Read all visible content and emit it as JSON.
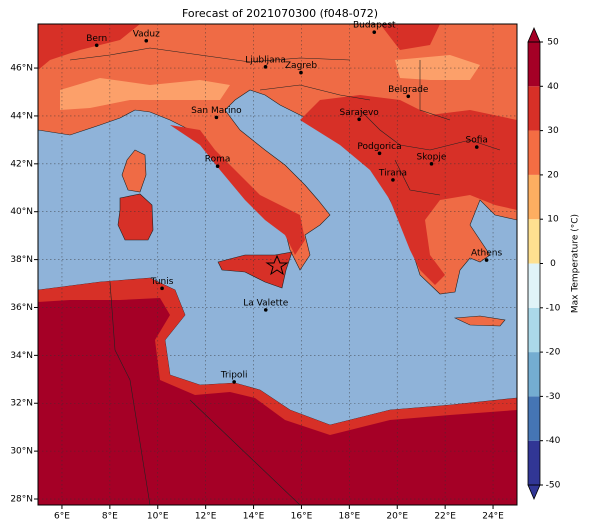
{
  "chart_data": {
    "type": "map",
    "title": "Forecast of 2021070300 (f048-072)",
    "xlim": [
      5,
      25
    ],
    "ylim": [
      27.75,
      47.84
    ],
    "xticks": [
      {
        "value": 6,
        "label": "6°E"
      },
      {
        "value": 8,
        "label": "8°E"
      },
      {
        "value": 10,
        "label": "10°E"
      },
      {
        "value": 12,
        "label": "12°E"
      },
      {
        "value": 14,
        "label": "14°E"
      },
      {
        "value": 16,
        "label": "16°E"
      },
      {
        "value": 18,
        "label": "18°E"
      },
      {
        "value": 20,
        "label": "20°E"
      },
      {
        "value": 22,
        "label": "22°E"
      },
      {
        "value": 24,
        "label": "24°E"
      }
    ],
    "yticks": [
      {
        "value": 28,
        "label": "28°N"
      },
      {
        "value": 30,
        "label": "30°N"
      },
      {
        "value": 32,
        "label": "32°N"
      },
      {
        "value": 34,
        "label": "34°N"
      },
      {
        "value": 36,
        "label": "36°N"
      },
      {
        "value": 38,
        "label": "38°N"
      },
      {
        "value": 40,
        "label": "40°N"
      },
      {
        "value": 42,
        "label": "42°N"
      },
      {
        "value": 44,
        "label": "44°N"
      },
      {
        "value": 46,
        "label": "46°N"
      }
    ],
    "grid": true,
    "cities": [
      {
        "name": "Bern",
        "lon": 7.45,
        "lat": 46.95
      },
      {
        "name": "Vaduz",
        "lon": 9.52,
        "lat": 47.14
      },
      {
        "name": "Budapest",
        "lon": 19.04,
        "lat": 47.5
      },
      {
        "name": "Ljubljana",
        "lon": 14.5,
        "lat": 46.05
      },
      {
        "name": "Zagreb",
        "lon": 15.98,
        "lat": 45.81
      },
      {
        "name": "San Marino",
        "lon": 12.45,
        "lat": 43.94
      },
      {
        "name": "Belgrade",
        "lon": 20.46,
        "lat": 44.82
      },
      {
        "name": "Sarajevo",
        "lon": 18.41,
        "lat": 43.86
      },
      {
        "name": "Sofia",
        "lon": 23.32,
        "lat": 42.7
      },
      {
        "name": "Roma",
        "lon": 12.5,
        "lat": 41.9
      },
      {
        "name": "Podgorica",
        "lon": 19.26,
        "lat": 42.44
      },
      {
        "name": "Skopje",
        "lon": 21.43,
        "lat": 42.0
      },
      {
        "name": "Tirana",
        "lon": 19.82,
        "lat": 41.33
      },
      {
        "name": "Athens",
        "lon": 23.73,
        "lat": 37.98
      },
      {
        "name": "Tunis",
        "lon": 10.18,
        "lat": 36.8
      },
      {
        "name": "La Valette",
        "lon": 14.51,
        "lat": 35.9
      },
      {
        "name": "Tripoli",
        "lon": 13.19,
        "lat": 32.89
      }
    ],
    "colorbar": {
      "label": "Max Temperature (°C)",
      "lim": [
        -50,
        50
      ],
      "ticks": [
        -50,
        -40,
        -30,
        -20,
        -10,
        0,
        10,
        20,
        30,
        40,
        50
      ],
      "colors": [
        "#313695",
        "#4575b4",
        "#74add1",
        "#abd9e9",
        "#e0f3f8",
        "#fee090",
        "#fdae61",
        "#f46d43",
        "#d73027",
        "#a50026"
      ]
    }
  }
}
